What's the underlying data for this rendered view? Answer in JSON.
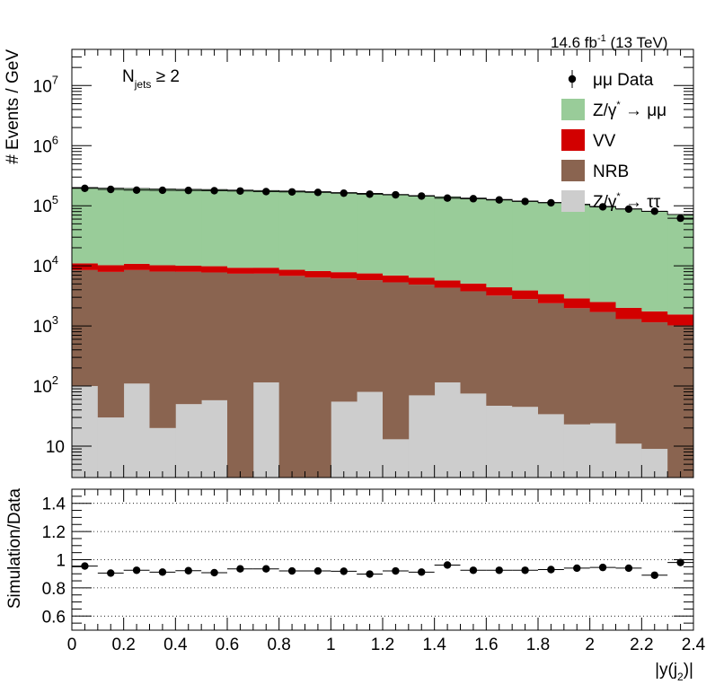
{
  "chart_data": [
    {
      "type": "bar",
      "stacked": true,
      "log_y": true,
      "ylabel": "# Events / GeV",
      "ylim": [
        3,
        40000000
      ],
      "xlim": [
        0,
        2.4
      ],
      "y_tick_labels": [
        "10",
        "10",
        "10",
        "10",
        "10",
        "10",
        "10"
      ],
      "y_tick_exponents": [
        "",
        "2",
        "3",
        "4",
        "5",
        "6",
        "7"
      ],
      "lumi_label": "14.6 fb",
      "lumi_exponent": "-1",
      "energy_label": "(13 TeV)",
      "selection_label_main": "N",
      "selection_label_sub": "jets",
      "selection_label_tail": "≥ 2",
      "legend_position": "top-right",
      "bin_edges": [
        0,
        0.1,
        0.2,
        0.3,
        0.4,
        0.5,
        0.6,
        0.7,
        0.8,
        0.9,
        1.0,
        1.1,
        1.2,
        1.3,
        1.4,
        1.5,
        1.6,
        1.7,
        1.8,
        1.9,
        2.0,
        2.1,
        2.2,
        2.3,
        2.4
      ],
      "series": [
        {
          "name": "Z/γ* → ττ",
          "legend": "Z/γ",
          "legend_tail": "→ ττ",
          "color": "#cdcdcd",
          "values": [
            100,
            30,
            110,
            20,
            50,
            58,
            2,
            115,
            2,
            2,
            55,
            80,
            13,
            70,
            115,
            75,
            47,
            45,
            34,
            23,
            24,
            11,
            9,
            2
          ]
        },
        {
          "name": "NRB",
          "legend": "NRB",
          "color": "#8a6450",
          "values": [
            8400,
            7900,
            8400,
            8000,
            7900,
            7700,
            7400,
            7300,
            6800,
            6400,
            6100,
            5700,
            5300,
            4800,
            4200,
            3700,
            3150,
            2750,
            2350,
            1950,
            1680,
            1290,
            1140,
            1020
          ]
        },
        {
          "name": "VV",
          "legend": "VV",
          "color": "#d20000",
          "values": [
            2500,
            2300,
            2300,
            2200,
            2100,
            2100,
            1900,
            1900,
            1800,
            1800,
            1700,
            1700,
            1600,
            1500,
            1400,
            1300,
            1200,
            1100,
            1000,
            900,
            800,
            700,
            600,
            530
          ]
        },
        {
          "name": "Z/γ* → μμ",
          "legend": "Z/γ",
          "legend_tail": "→ μμ",
          "color": "#99cc99",
          "values": [
            190000,
            186000,
            183000,
            180000,
            178000,
            176000,
            173000,
            170000,
            167000,
            163000,
            158000,
            153000,
            147000,
            141000,
            135000,
            129000,
            123000,
            116000,
            110000,
            103000,
            95000,
            87000,
            79000,
            70000
          ]
        }
      ],
      "data_series": {
        "name": "μμ Data",
        "legend": "μμ Data",
        "values": [
          195000,
          187000,
          182000,
          181000,
          180000,
          178000,
          176000,
          172000,
          170000,
          167000,
          162000,
          156000,
          152000,
          145000,
          134000,
          131000,
          125000,
          118000,
          112000,
          104000,
          96000,
          88000,
          81000,
          62000
        ]
      }
    },
    {
      "type": "scatter",
      "ylabel": "Simulation/Data",
      "xlabel_main": "|y(j",
      "xlabel_sub": "2",
      "xlabel_tail": ")|",
      "ylim": [
        0.5,
        1.5
      ],
      "xlim": [
        0,
        2.4
      ],
      "grid_y": [
        0.6,
        0.8,
        1.0,
        1.2,
        1.4
      ],
      "y_tick_labels": [
        "0.6",
        "0.8",
        "1",
        "1.2",
        "1.4"
      ],
      "x_tick_labels": [
        "0",
        "0.2",
        "0.4",
        "0.6",
        "0.8",
        "1",
        "1.2",
        "1.4",
        "1.6",
        "1.8",
        "2",
        "2.2",
        "2.4"
      ],
      "x": [
        0.05,
        0.15,
        0.25,
        0.35,
        0.45,
        0.55,
        0.65,
        0.75,
        0.85,
        0.95,
        1.05,
        1.15,
        1.25,
        1.35,
        1.45,
        1.55,
        1.65,
        1.75,
        1.85,
        1.95,
        2.05,
        2.15,
        2.25,
        2.35
      ],
      "y": [
        0.955,
        0.905,
        0.925,
        0.912,
        0.922,
        0.908,
        0.935,
        0.935,
        0.92,
        0.92,
        0.918,
        0.898,
        0.92,
        0.912,
        0.962,
        0.925,
        0.925,
        0.925,
        0.93,
        0.94,
        0.945,
        0.94,
        0.89,
        0.98
      ]
    }
  ]
}
